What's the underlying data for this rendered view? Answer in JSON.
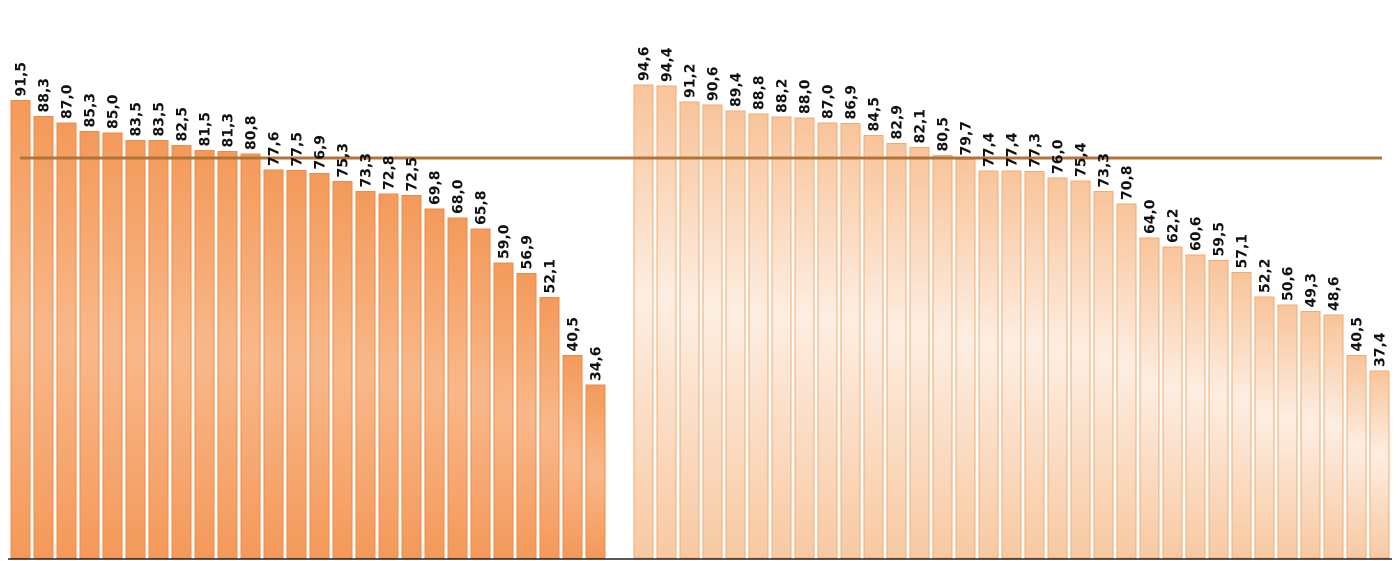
{
  "chart_data": {
    "type": "bar",
    "title": "",
    "xlabel": "",
    "ylabel": "",
    "ylim": [
      0,
      100
    ],
    "grid": false,
    "reference_line": 80.0,
    "colors": {
      "series_a": "#f5a266",
      "series_b": "#fbd3b0",
      "reference_line": "#b07338",
      "axis": "#222222"
    },
    "series": [
      {
        "labels": [
          "91,5",
          "88,3",
          "87,0",
          "85,3",
          "85,0",
          "83,5",
          "83,5",
          "82,5",
          "81,5",
          "81,3",
          "80,8",
          "77,6",
          "77,5",
          "76,9",
          "75,3",
          "73,3",
          "72,8",
          "72,5",
          "69,8",
          "68,0",
          "65,8",
          "59,0",
          "56,9",
          "52,1",
          "40,5",
          "34,6"
        ],
        "values": [
          91.5,
          88.3,
          87.0,
          85.3,
          85.0,
          83.5,
          83.5,
          82.5,
          81.5,
          81.3,
          80.8,
          77.6,
          77.5,
          76.9,
          75.3,
          73.3,
          72.8,
          72.5,
          69.8,
          68.0,
          65.8,
          59.0,
          56.9,
          52.1,
          40.5,
          34.6
        ]
      },
      {
        "labels": [
          "94,6",
          "94,4",
          "91,2",
          "90,6",
          "89,4",
          "88,8",
          "88,2",
          "88,0",
          "87,0",
          "86,9",
          "84,5",
          "82,9",
          "82,1",
          "80,5",
          "79,7",
          "77,4",
          "77,4",
          "77,3",
          "76,0",
          "75,4",
          "73,3",
          "70,8",
          "64,0",
          "62,2",
          "60,6",
          "59,5",
          "57,1",
          "52,2",
          "50,6",
          "49,3",
          "48,6",
          "40,5",
          "37,4"
        ],
        "values": [
          94.6,
          94.4,
          91.2,
          90.6,
          89.4,
          88.8,
          88.2,
          88.0,
          87.0,
          86.9,
          84.5,
          82.9,
          82.1,
          80.5,
          79.7,
          77.4,
          77.4,
          77.3,
          76.0,
          75.4,
          73.3,
          70.8,
          64.0,
          62.2,
          60.6,
          59.5,
          57.1,
          52.2,
          50.6,
          49.3,
          48.6,
          40.5,
          37.4
        ]
      }
    ]
  }
}
